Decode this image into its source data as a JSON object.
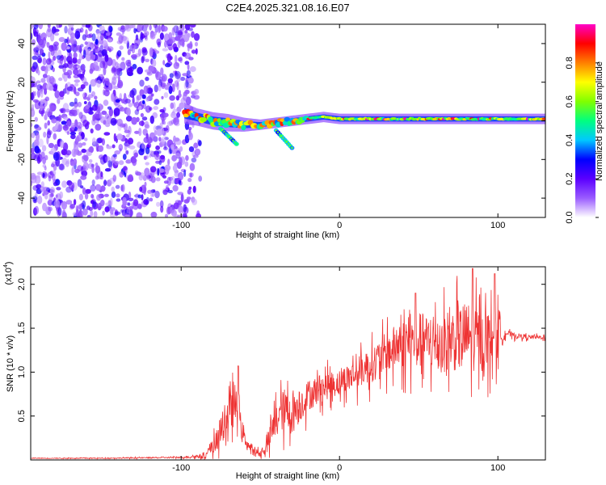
{
  "chart_data": [
    {
      "type": "heatmap",
      "title": "C2E4.2025.321.08.16.E07",
      "xlabel": "Height of straight line (km)",
      "ylabel": "Frequency (Hz)",
      "xlim": [
        -195,
        130
      ],
      "ylim": [
        -50,
        50
      ],
      "x_ticks": [
        -100,
        0,
        100
      ],
      "x_tick_labels": [
        "-100",
        "0",
        "100"
      ],
      "y_ticks": [
        -40,
        -20,
        0,
        20,
        40
      ],
      "y_tick_labels": [
        "-40",
        "-20",
        "0",
        "20",
        "40"
      ],
      "colorbar": {
        "label": "Normalized spectral amplitude",
        "range": [
          0,
          1
        ],
        "ticks": [
          0.0,
          0.2,
          0.4,
          0.6,
          0.8
        ],
        "tick_labels": [
          "0.0",
          "0.2",
          "0.4",
          "0.6",
          "0.8"
        ],
        "colors": [
          "#ffffff",
          "#9a5cff",
          "#5b00ff",
          "#0000ff",
          "#00c8ff",
          "#00ff80",
          "#80ff00",
          "#ffff00",
          "#ff8000",
          "#ff0000",
          "#ff00c8"
        ]
      },
      "noise_region_x": [
        -195,
        -92
      ],
      "signal_track": [
        {
          "x": -98,
          "y": 4,
          "width": 6
        },
        {
          "x": -90,
          "y": 2,
          "width": 5
        },
        {
          "x": -80,
          "y": 0,
          "width": 5
        },
        {
          "x": -70,
          "y": -1,
          "width": 5
        },
        {
          "x": -60,
          "y": -2,
          "width": 4
        },
        {
          "x": -50,
          "y": -2,
          "width": 3
        },
        {
          "x": -40,
          "y": -1,
          "width": 3
        },
        {
          "x": -30,
          "y": 0,
          "width": 3
        },
        {
          "x": -20,
          "y": 1,
          "width": 3
        },
        {
          "x": -10,
          "y": 2,
          "width": 3
        },
        {
          "x": 0,
          "y": 1,
          "width": 3
        },
        {
          "x": 20,
          "y": 1,
          "width": 3
        },
        {
          "x": 40,
          "y": 1,
          "width": 3
        },
        {
          "x": 60,
          "y": 1,
          "width": 3
        },
        {
          "x": 80,
          "y": 1,
          "width": 3
        },
        {
          "x": 100,
          "y": 1,
          "width": 3
        },
        {
          "x": 130,
          "y": 1,
          "width": 3
        }
      ],
      "side_branches": [
        {
          "x": [
            -75,
            -65
          ],
          "y": [
            -4,
            -12
          ]
        },
        {
          "x": [
            -40,
            -30
          ],
          "y": [
            -5,
            -14
          ]
        }
      ]
    },
    {
      "type": "line",
      "xlabel": "Height of straight line (km)",
      "ylabel": "SNR (10 * v/v)",
      "y_multiplier_label": "(x10",
      "y_multiplier_exp": "4",
      "xlim": [
        -195,
        130
      ],
      "ylim": [
        0,
        2.2
      ],
      "x_ticks": [
        -100,
        0,
        100
      ],
      "x_tick_labels": [
        "-100",
        "0",
        "100"
      ],
      "y_ticks": [
        0.5,
        1.0,
        1.5,
        2.0
      ],
      "y_tick_labels": [
        "0.5",
        "1.0",
        "1.5",
        "2.0"
      ],
      "series": [
        {
          "name": "SNR",
          "color": "#ee3333",
          "x": [
            -195,
            -150,
            -100,
            -85,
            -80,
            -75,
            -70,
            -66,
            -63,
            -60,
            -55,
            -50,
            -45,
            -40,
            -35,
            -30,
            -25,
            -20,
            -10,
            0,
            10,
            20,
            30,
            40,
            50,
            60,
            70,
            80,
            90,
            100,
            105,
            110,
            120,
            130
          ],
          "y": [
            0.02,
            0.02,
            0.03,
            0.05,
            0.15,
            0.35,
            0.55,
            0.65,
            0.45,
            0.25,
            0.1,
            0.08,
            0.2,
            0.5,
            0.6,
            0.55,
            0.65,
            0.75,
            0.85,
            0.9,
            1.0,
            1.1,
            1.25,
            1.35,
            1.4,
            1.35,
            1.4,
            1.45,
            1.4,
            1.45,
            1.45,
            1.42,
            1.4,
            1.4
          ],
          "amp": [
            0.005,
            0.005,
            0.01,
            0.03,
            0.12,
            0.2,
            0.25,
            0.3,
            0.2,
            0.1,
            0.05,
            0.05,
            0.15,
            0.25,
            0.3,
            0.3,
            0.25,
            0.22,
            0.2,
            0.18,
            0.22,
            0.25,
            0.3,
            0.35,
            0.4,
            0.4,
            0.45,
            0.5,
            0.45,
            0.35,
            0.04,
            0.04,
            0.03,
            0.03
          ],
          "peaks": [
            {
              "x": -64,
              "y": 1.07
            },
            {
              "x": 48,
              "y": 1.9
            },
            {
              "x": 84,
              "y": 2.18
            },
            {
              "x": 98,
              "y": 2.12
            }
          ]
        }
      ]
    }
  ]
}
